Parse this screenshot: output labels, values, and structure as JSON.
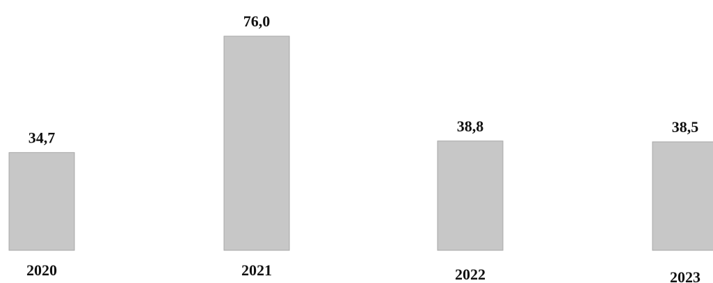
{
  "chart_data": {
    "type": "bar",
    "categories": [
      "2020",
      "2021",
      "2022",
      "2023"
    ],
    "values": [
      34.7,
      76.0,
      38.8,
      38.5
    ],
    "data_labels": [
      "34,7",
      "76,0",
      "38,8",
      "38,5"
    ],
    "ylim": [
      0,
      76.0
    ],
    "grid": false,
    "legend": "none",
    "colors": {
      "bar": "#c7c7c7",
      "text": "#111111"
    }
  }
}
